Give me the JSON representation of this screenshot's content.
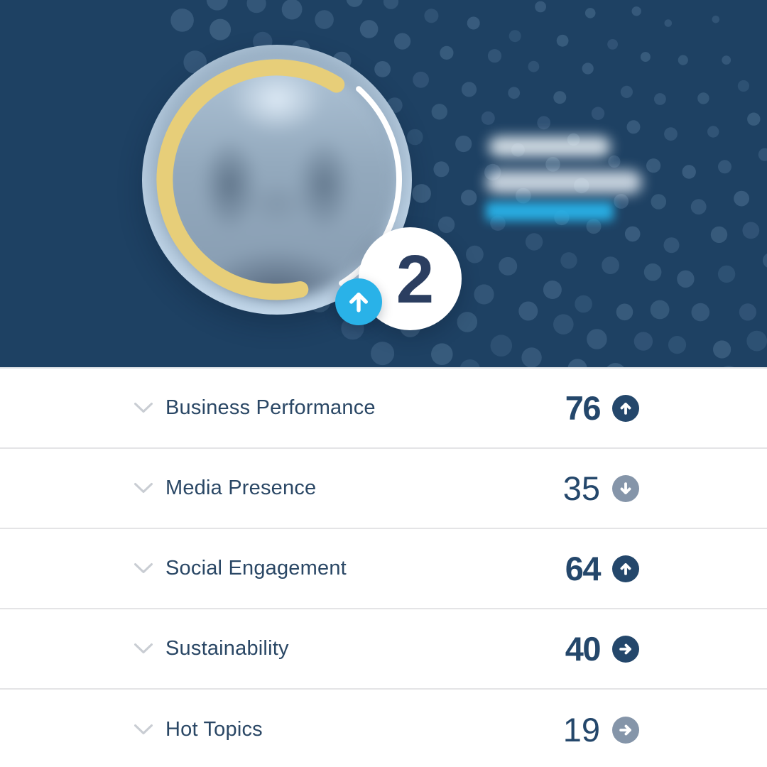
{
  "colors": {
    "header_bg": "#1E4163",
    "accent_cyan": "#29B2E8",
    "ring_gold": "#E7CE79",
    "ring_white": "#FFFFFF",
    "dot_blue": "#7FA2C2",
    "text_navy": "#2A4765",
    "score_navy": "#24476B",
    "badge_navy": "#24476B",
    "badge_gray": "#8595A9",
    "divider": "#E4E4E6",
    "chevron_gray": "#C9CDD3",
    "rank_number": "#2B3E60"
  },
  "header": {
    "rank_badge": {
      "value": "2",
      "trend": "up",
      "trend_icon": "arrow-up-icon"
    }
  },
  "metrics": {
    "rows": [
      {
        "label": "Business Performance",
        "value": "76",
        "trend": "up",
        "emphasis": true
      },
      {
        "label": "Media Presence",
        "value": "35",
        "trend": "down",
        "emphasis": false
      },
      {
        "label": "Social Engagement",
        "value": "64",
        "trend": "up",
        "emphasis": true
      },
      {
        "label": "Sustainability",
        "value": "40",
        "trend": "right",
        "emphasis": true
      },
      {
        "label": "Hot Topics",
        "value": "19",
        "trend": "right",
        "emphasis": false
      }
    ]
  }
}
